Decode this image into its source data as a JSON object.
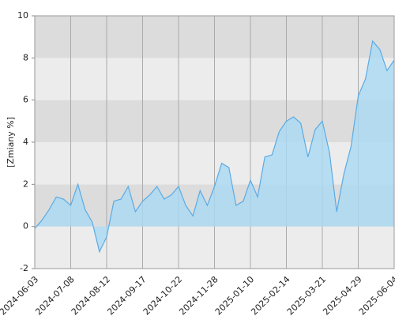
{
  "chart_data": {
    "type": "area",
    "y_label": "[Zmiany %]",
    "categories": [
      "2024-06-03",
      null,
      null,
      null,
      null,
      "2024-07-08",
      null,
      null,
      null,
      null,
      "2024-08-12",
      null,
      null,
      null,
      null,
      "2024-09-17",
      null,
      null,
      null,
      null,
      "2024-10-22",
      null,
      null,
      null,
      null,
      "2024-11-28",
      null,
      null,
      null,
      null,
      "2025-01-10",
      null,
      null,
      null,
      null,
      "2025-02-14",
      null,
      null,
      null,
      null,
      "2025-03-21",
      null,
      null,
      null,
      null,
      "2025-04-29",
      null,
      null,
      null,
      null,
      "2025-06-04"
    ],
    "values": [
      -0.1,
      0.3,
      0.8,
      1.4,
      1.3,
      1.0,
      2.0,
      0.8,
      0.2,
      -1.2,
      -0.5,
      1.2,
      1.3,
      1.9,
      0.7,
      1.2,
      1.5,
      1.9,
      1.3,
      1.5,
      1.9,
      1.0,
      0.5,
      1.7,
      1.0,
      1.9,
      3.0,
      2.8,
      1.0,
      1.2,
      2.2,
      1.4,
      3.3,
      3.4,
      4.5,
      5.0,
      5.2,
      4.9,
      3.3,
      4.6,
      5.0,
      3.5,
      0.7,
      2.5,
      3.8,
      6.2,
      7.0,
      8.8,
      8.4,
      7.4,
      7.9
    ],
    "color": "#5aabe6",
    "fill": "#a9daf2",
    "ylim": [
      -2,
      10
    ],
    "yticks": [
      -2,
      0,
      2,
      4,
      6,
      8,
      10
    ],
    "band_colors": [
      "#ececec",
      "#dcdcdc"
    ],
    "grid": true
  }
}
